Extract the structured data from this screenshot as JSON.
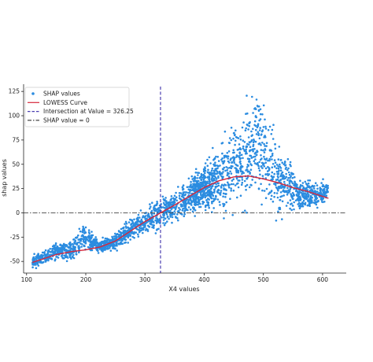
{
  "chart_data": {
    "type": "scatter",
    "xlabel": "X4 values",
    "ylabel": "shap values",
    "xlim": [
      95,
      640
    ],
    "ylim": [
      -62,
      130
    ],
    "xticks": [
      100,
      200,
      300,
      400,
      500,
      600
    ],
    "yticks": [
      -50,
      -25,
      0,
      25,
      50,
      75,
      100,
      125
    ],
    "legend_position": "top-left",
    "legend": [
      {
        "label": "SHAP values",
        "kind": "marker",
        "color": "#2b8ce0"
      },
      {
        "label": "LOWESS Curve",
        "kind": "line",
        "color": "#d6263a"
      },
      {
        "label": "Intersection at Value = 326.25",
        "kind": "dashed",
        "color": "#4b3fb0"
      },
      {
        "label": "SHAP value = 0",
        "kind": "dashdot",
        "color": "#444444"
      }
    ],
    "scatter_color": "#2b8ce0",
    "lowess_color": "#d6263a",
    "vline_color": "#4b3fb0",
    "hline_color": "#444444",
    "intersection_x": 326.25,
    "zero_line_y": 0,
    "lowess": {
      "x": [
        110,
        130,
        150,
        175,
        200,
        225,
        250,
        275,
        300,
        326.25,
        350,
        375,
        400,
        425,
        450,
        475,
        500,
        525,
        550,
        575,
        610
      ],
      "y": [
        -51,
        -47,
        -43,
        -40,
        -38,
        -35,
        -29,
        -19,
        -9,
        0,
        8,
        17,
        26,
        33,
        37,
        38,
        35,
        31,
        26,
        22,
        15
      ]
    },
    "scatter_profile": {
      "x": [
        110,
        130,
        150,
        175,
        195,
        205,
        225,
        250,
        275,
        300,
        326,
        350,
        375,
        400,
        425,
        450,
        470,
        490,
        510,
        525,
        545,
        560,
        580,
        610
      ],
      "y": [
        -50,
        -46,
        -40,
        -39,
        -24,
        -28,
        -35,
        -29,
        -18,
        -8,
        0,
        8,
        16,
        26,
        36,
        48,
        62,
        74,
        46,
        36,
        30,
        18,
        18,
        20
      ],
      "spread": [
        3,
        3,
        4,
        4,
        6,
        5,
        3,
        4,
        5,
        6,
        7,
        7,
        9,
        11,
        16,
        20,
        24,
        26,
        20,
        16,
        12,
        7,
        6,
        5
      ]
    },
    "point_count": 2600
  }
}
